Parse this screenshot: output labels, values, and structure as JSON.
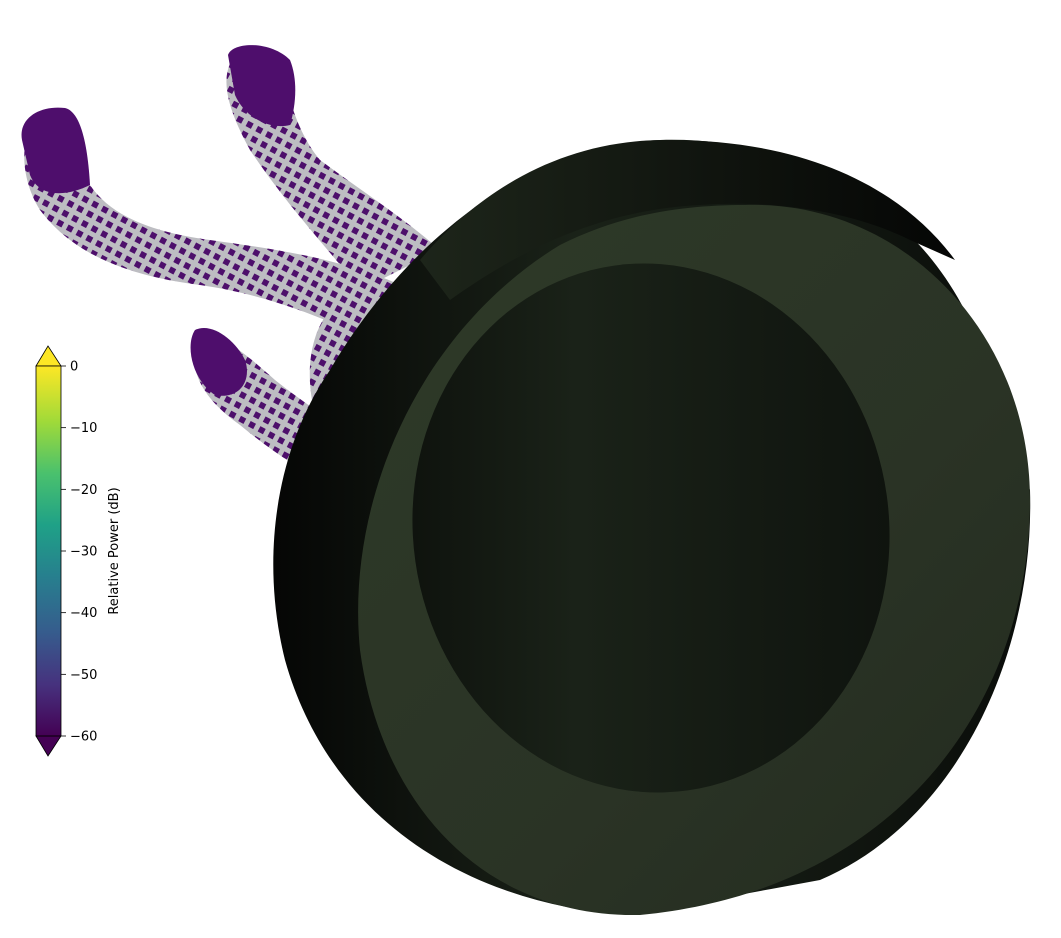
{
  "colorbar": {
    "label": "Relative Power (dB)",
    "min": -60,
    "max": 0,
    "ticks": [
      {
        "value": 0,
        "label": "0"
      },
      {
        "value": -10,
        "label": "−10"
      },
      {
        "value": -20,
        "label": "−20"
      },
      {
        "value": -30,
        "label": "−30"
      },
      {
        "value": -40,
        "label": "−40"
      },
      {
        "value": -50,
        "label": "−50"
      },
      {
        "value": -60,
        "label": "−60"
      }
    ],
    "colormap": "viridis",
    "extend": "both",
    "stops": [
      "#440154",
      "#46327e",
      "#365c8d",
      "#277f8e",
      "#1fa187",
      "#4ac16d",
      "#a0da39",
      "#fde725"
    ]
  },
  "scene": {
    "description_colors": {
      "body_base": "#4a0f66",
      "body_highlight": "#b9b9bd",
      "ring_front": "#2c3626",
      "ring_side": "#101410",
      "antenna": "#1a1aff",
      "hotspot": "#e8f01a"
    }
  }
}
